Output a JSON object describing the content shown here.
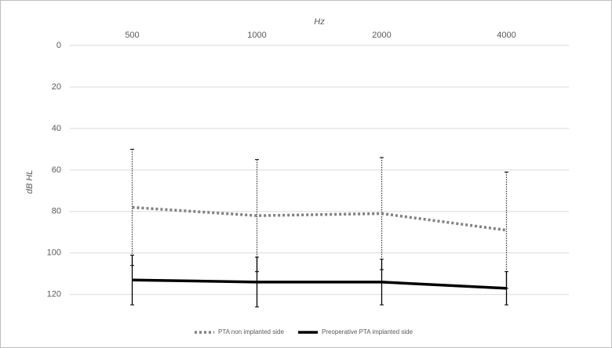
{
  "chart_data": {
    "type": "line",
    "x_label": "Hz",
    "y_label": "dB HL",
    "categories": [
      "500",
      "1000",
      "2000",
      "4000"
    ],
    "ylim": [
      0,
      125
    ],
    "yticks": [
      0,
      20,
      40,
      60,
      80,
      100,
      120
    ],
    "y_inverted": true,
    "grid": true,
    "series": [
      {
        "name": "PTA non implanted side",
        "color": "#808080",
        "line_style": "dotted",
        "values": [
          78,
          82,
          81,
          89
        ],
        "errors": [
          28,
          27,
          27,
          28
        ]
      },
      {
        "name": "Preoperative PTA implanted side",
        "color": "#000000",
        "line_style": "solid",
        "values": [
          113,
          114,
          114,
          117
        ],
        "errors": [
          12,
          12,
          11,
          8
        ]
      }
    ]
  }
}
